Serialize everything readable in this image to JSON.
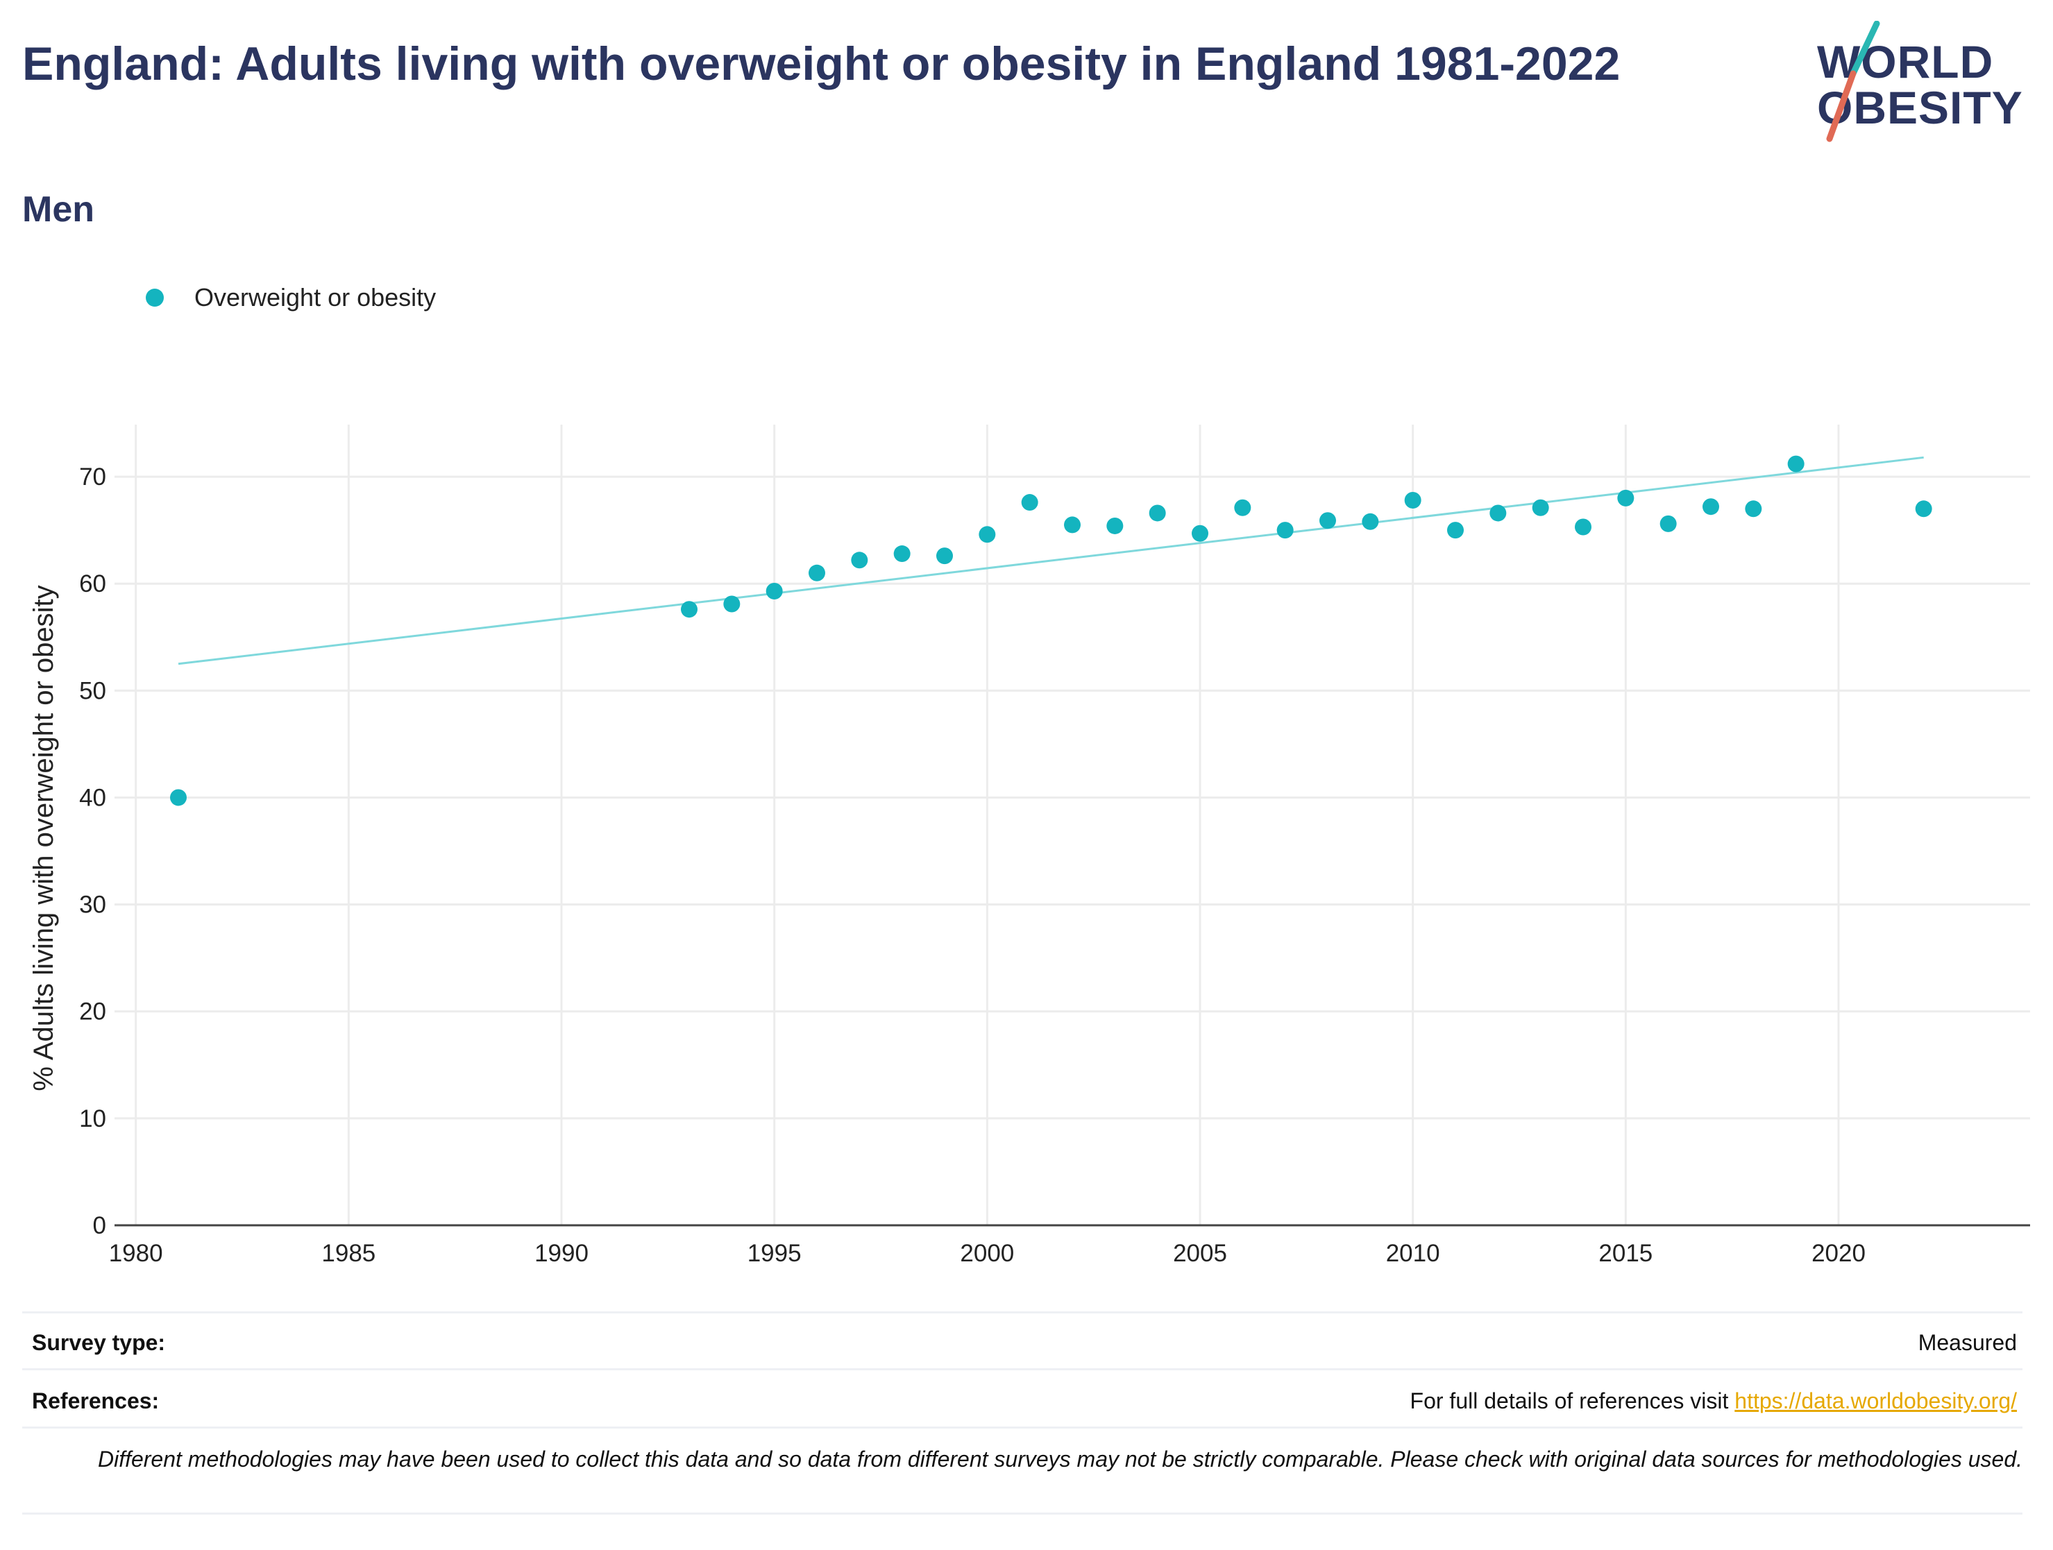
{
  "header": {
    "title": "England: Adults living with overweight or obesity in England 1981-2022",
    "subtitle": "Men"
  },
  "logo": {
    "line1": "WORLD",
    "line2": "OBESITY",
    "slash_teal": "#2ab7b3",
    "slash_red": "#e06a55"
  },
  "legend": {
    "label": "Overweight or obesity"
  },
  "colors": {
    "title": "#2b3560",
    "points": "#14b4bf",
    "trendline": "#7fd8dc",
    "grid": "#ececec",
    "link": "#e6a800"
  },
  "chart_data": {
    "type": "scatter",
    "ylabel": "% Adults living with overweight or obesity",
    "xlabel": "",
    "xlim": [
      1979.5,
      2024.5
    ],
    "ylim": [
      0,
      75
    ],
    "xticks": [
      1980,
      1985,
      1990,
      1995,
      2000,
      2005,
      2010,
      2015,
      2020
    ],
    "yticks": [
      0,
      10,
      20,
      30,
      40,
      50,
      60,
      70
    ],
    "grid": true,
    "legend_position": "top-left",
    "series": [
      {
        "name": "Overweight or obesity",
        "x": [
          1981,
          1993,
          1994,
          1995,
          1996,
          1997,
          1998,
          1999,
          2000,
          2001,
          2002,
          2003,
          2004,
          2005,
          2006,
          2007,
          2008,
          2009,
          2010,
          2011,
          2012,
          2013,
          2014,
          2015,
          2016,
          2017,
          2018,
          2019,
          2022
        ],
        "y": [
          40.0,
          57.6,
          58.1,
          59.3,
          61.0,
          62.2,
          62.8,
          62.6,
          64.6,
          67.6,
          65.5,
          65.4,
          66.6,
          64.7,
          67.1,
          65.0,
          65.9,
          65.8,
          67.8,
          65.0,
          66.6,
          67.1,
          65.3,
          68.0,
          65.6,
          67.2,
          67.0,
          71.2,
          67.0
        ]
      }
    ],
    "trendline": {
      "x": [
        1981,
        2022
      ],
      "y": [
        52.5,
        71.8
      ]
    }
  },
  "footer": {
    "survey_label": "Survey type:",
    "survey_value": "Measured",
    "references_label": "References:",
    "references_text": "For full details of references visit ",
    "references_link": "https://data.worldobesity.org/",
    "disclaimer": "Different methodologies may have been used to collect this data and so data from different surveys may not be strictly comparable. Please check with original data sources for methodologies used."
  }
}
